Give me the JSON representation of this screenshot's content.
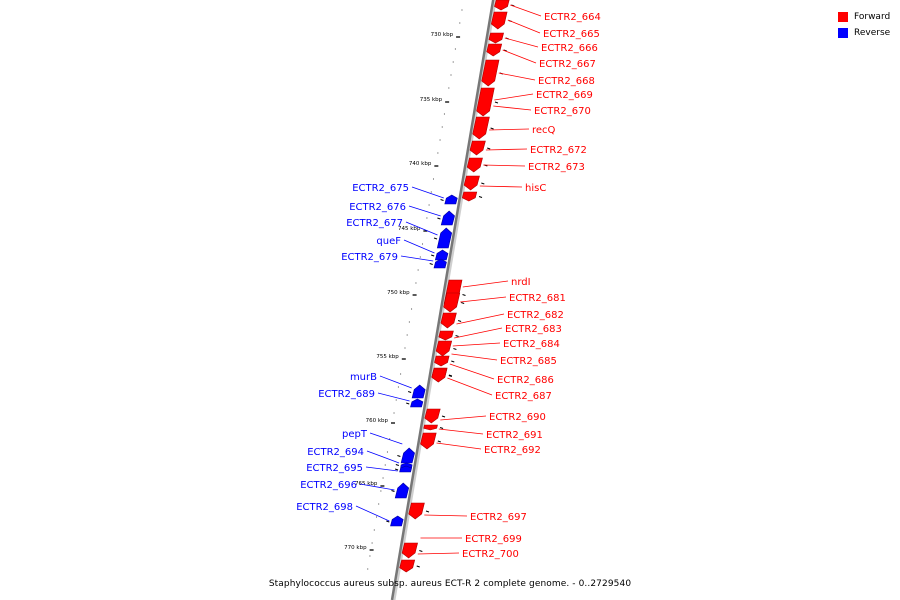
{
  "colors": {
    "forward": "#ff0000",
    "forward_dark": "#b00000",
    "reverse": "#0000ff",
    "reverse_dark": "#0000a0",
    "backbone": "#777777"
  },
  "legend": {
    "forward_label": "Forward",
    "reverse_label": "Reverse"
  },
  "footer": {
    "title": "Staphylococcus aureus subsp. aureus ECT-R 2 complete genome. - 0..2729540"
  },
  "scale": {
    "unit": "kbp",
    "ticks": [
      730,
      735,
      740,
      745,
      750,
      755,
      760,
      765,
      770
    ]
  },
  "features": [
    {
      "name": "ECTR2_664",
      "strand": "forward"
    },
    {
      "name": "ECTR2_665",
      "strand": "forward"
    },
    {
      "name": "ECTR2_666",
      "strand": "forward"
    },
    {
      "name": "ECTR2_667",
      "strand": "forward"
    },
    {
      "name": "ECTR2_668",
      "strand": "forward"
    },
    {
      "name": "ECTR2_669",
      "strand": "forward"
    },
    {
      "name": "ECTR2_670",
      "strand": "forward"
    },
    {
      "name": "recQ",
      "strand": "forward"
    },
    {
      "name": "ECTR2_672",
      "strand": "forward"
    },
    {
      "name": "ECTR2_673",
      "strand": "forward"
    },
    {
      "name": "hisC",
      "strand": "forward"
    },
    {
      "name": "ECTR2_675",
      "strand": "reverse"
    },
    {
      "name": "ECTR2_676",
      "strand": "reverse"
    },
    {
      "name": "ECTR2_677",
      "strand": "reverse"
    },
    {
      "name": "queF",
      "strand": "reverse"
    },
    {
      "name": "ECTR2_679",
      "strand": "reverse"
    },
    {
      "name": "nrdI",
      "strand": "forward"
    },
    {
      "name": "ECTR2_681",
      "strand": "forward"
    },
    {
      "name": "ECTR2_682",
      "strand": "forward"
    },
    {
      "name": "ECTR2_683",
      "strand": "forward"
    },
    {
      "name": "ECTR2_684",
      "strand": "forward"
    },
    {
      "name": "ECTR2_685",
      "strand": "forward"
    },
    {
      "name": "ECTR2_686",
      "strand": "forward"
    },
    {
      "name": "ECTR2_687",
      "strand": "forward"
    },
    {
      "name": "murB",
      "strand": "reverse"
    },
    {
      "name": "ECTR2_689",
      "strand": "reverse"
    },
    {
      "name": "ECTR2_690",
      "strand": "forward"
    },
    {
      "name": "ECTR2_691",
      "strand": "forward"
    },
    {
      "name": "ECTR2_692",
      "strand": "forward"
    },
    {
      "name": "pepT",
      "strand": "reverse"
    },
    {
      "name": "ECTR2_694",
      "strand": "reverse"
    },
    {
      "name": "ECTR2_695",
      "strand": "reverse"
    },
    {
      "name": "ECTR2_696",
      "strand": "reverse"
    },
    {
      "name": "ECTR2_697",
      "strand": "forward"
    },
    {
      "name": "ECTR2_698",
      "strand": "reverse"
    },
    {
      "name": "ECTR2_699",
      "strand": "forward"
    },
    {
      "name": "ECTR2_700",
      "strand": "forward"
    }
  ]
}
